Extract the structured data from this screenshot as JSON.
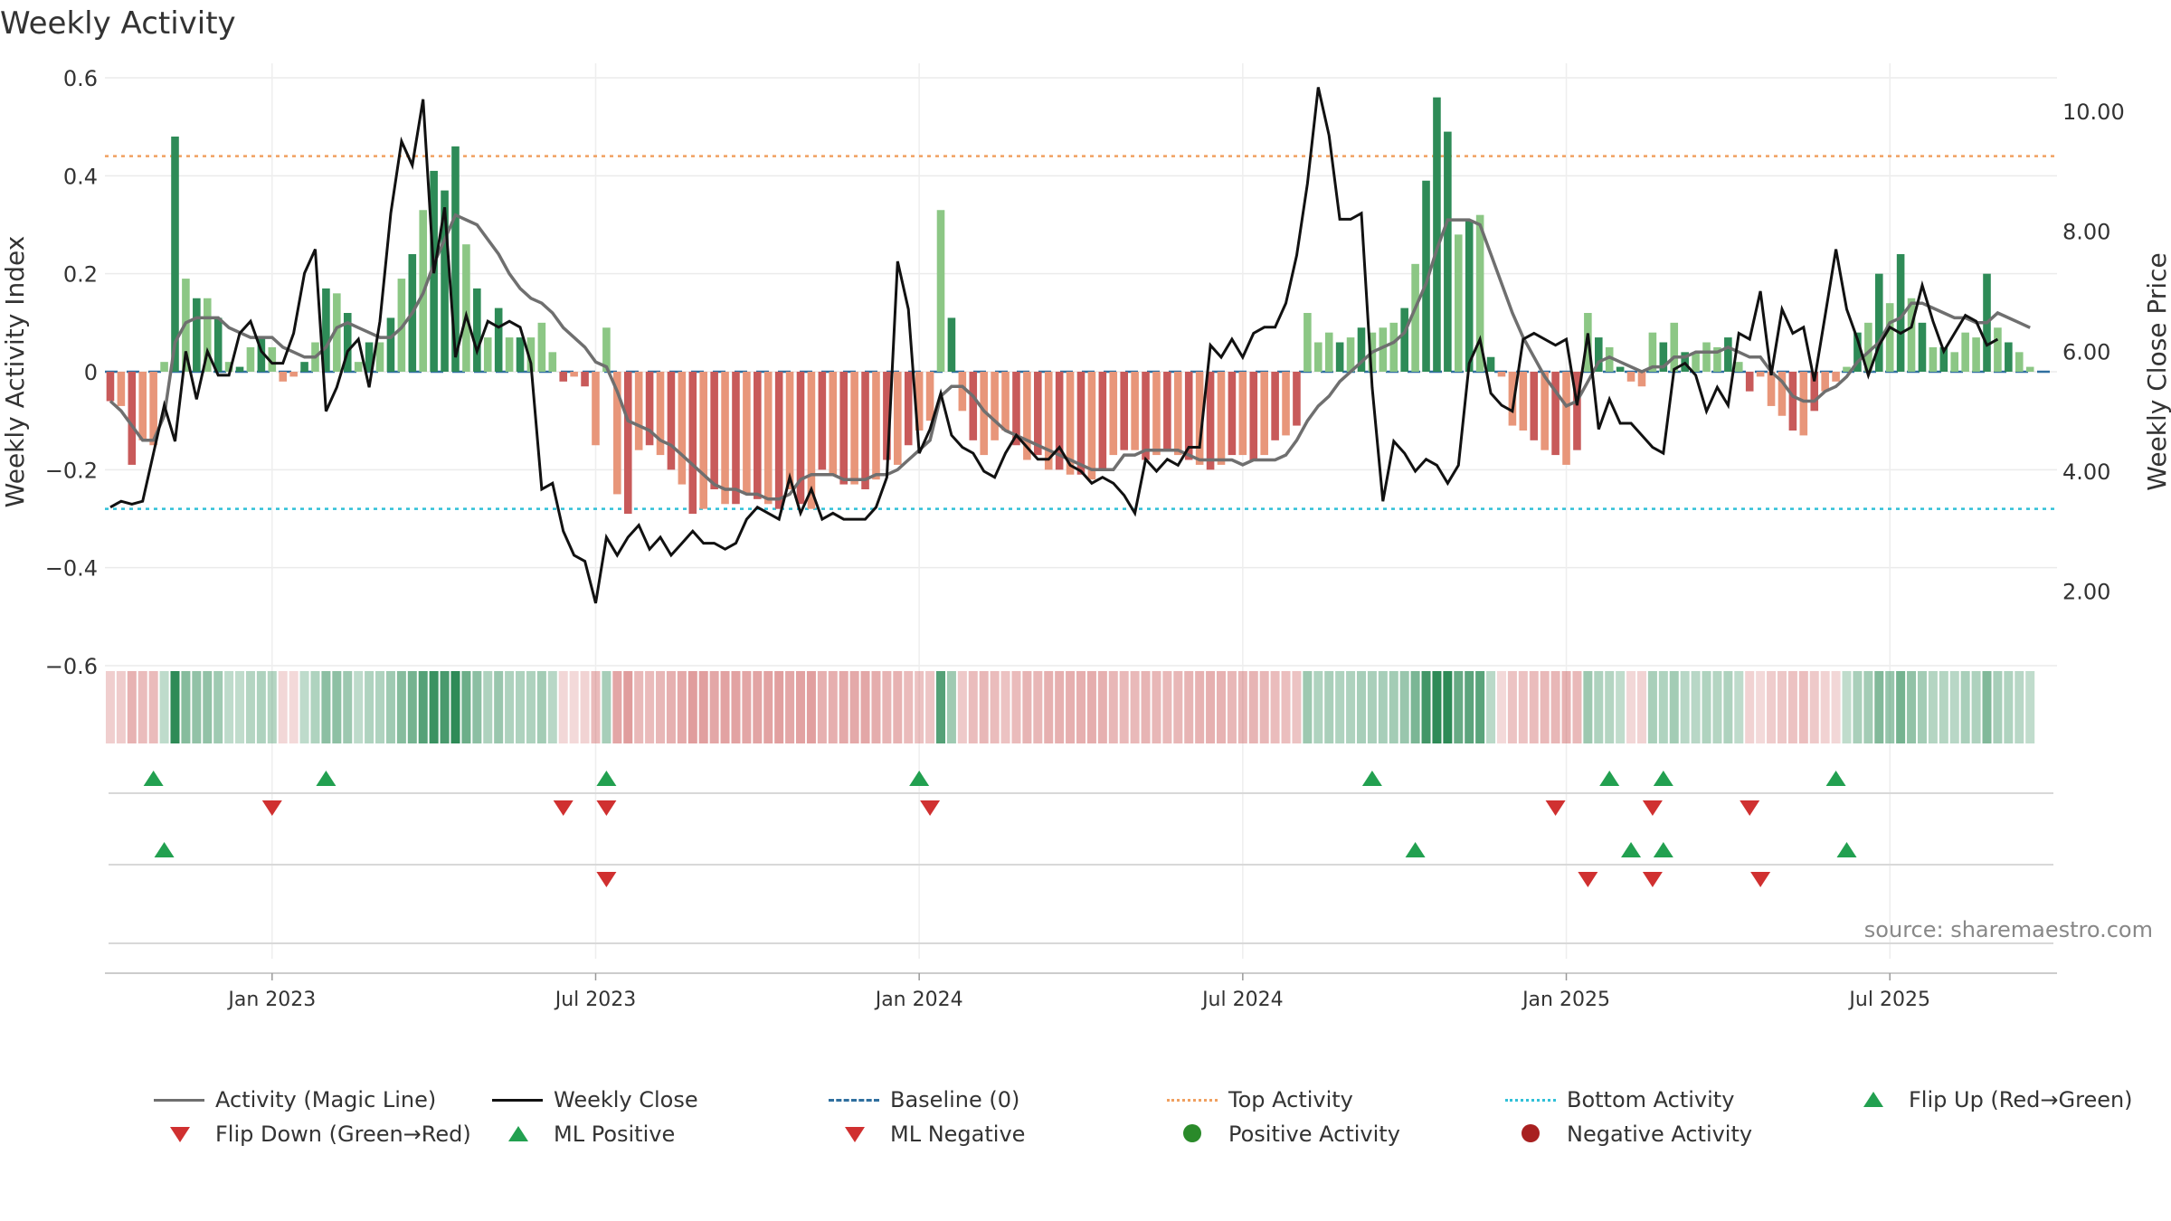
{
  "title": "Weekly Activity",
  "source": "source: sharemaestro.com",
  "legend": [
    {
      "label": "Activity (Magic Line)",
      "symbol": "line-gray"
    },
    {
      "label": "Weekly Close",
      "symbol": "line-black"
    },
    {
      "label": "Baseline (0)",
      "symbol": "dash-blue"
    },
    {
      "label": "Top Activity",
      "symbol": "dot-orange"
    },
    {
      "label": "Bottom Activity",
      "symbol": "dot-cyan"
    },
    {
      "label": "Flip Up (Red→Green)",
      "symbol": "tri-up"
    },
    {
      "label": "Flip Down (Green→Red)",
      "symbol": "tri-down"
    },
    {
      "label": "ML Positive",
      "symbol": "tri-up"
    },
    {
      "label": "ML Negative",
      "symbol": "tri-down"
    },
    {
      "label": "Positive Activity",
      "symbol": "dot-green"
    },
    {
      "label": "Negative Activity",
      "symbol": "dot-red"
    }
  ],
  "colors": {
    "pos_strong": "#2e8b57",
    "pos_light": "#8cc785",
    "neg_strong": "#c85a5a",
    "neg_light": "#e8967a",
    "magic_line": "#6f6f6f",
    "close_line": "#111111",
    "baseline": "#2f6f9f",
    "top": "#f0a060",
    "bottom": "#30c0d8",
    "flip_up": "#22a050",
    "flip_down": "#d03030"
  },
  "chart_data": {
    "type": "bar+line",
    "x_ticks": [
      "Jan 2023",
      "Jul 2023",
      "Jan 2024",
      "Jul 2024",
      "Jan 2025",
      "Jul 2025"
    ],
    "x_tick_week": [
      15,
      45,
      75,
      105,
      135,
      165
    ],
    "ylabel_left": "Weekly Activity Index",
    "ylabel_right": "Weekly Close Price",
    "ylim_left": [
      -0.6,
      0.6
    ],
    "yticks_left": [
      {
        "v": 0.6,
        "label": "0.6"
      },
      {
        "v": 0.4,
        "label": "0.4"
      },
      {
        "v": 0.2,
        "label": "0.2"
      },
      {
        "v": 0,
        "label": "0"
      },
      {
        "v": -0.2,
        "label": "−0.2"
      },
      {
        "v": -0.4,
        "label": "−0.4"
      },
      {
        "v": -0.6,
        "label": "−0.6"
      }
    ],
    "ylim_right": [
      1.0,
      10.8
    ],
    "yticks_right": [
      {
        "v": 10,
        "label": "10.00"
      },
      {
        "v": 8,
        "label": "8.00"
      },
      {
        "v": 6,
        "label": "6.00"
      },
      {
        "v": 4,
        "label": "4.00"
      },
      {
        "v": 2,
        "label": "2.00"
      }
    ],
    "top_activity": 0.44,
    "bottom_activity": -0.28,
    "n_weeks": 181,
    "activity": [
      -0.06,
      -0.07,
      -0.19,
      -0.14,
      -0.15,
      0.02,
      0.48,
      0.19,
      0.15,
      0.15,
      0.11,
      0.02,
      0.01,
      0.05,
      0.07,
      0.05,
      -0.02,
      -0.01,
      0.02,
      0.06,
      0.17,
      0.16,
      0.12,
      0.02,
      0.06,
      0.06,
      0.11,
      0.19,
      0.24,
      0.33,
      0.41,
      0.37,
      0.46,
      0.26,
      0.17,
      0.07,
      0.13,
      0.07,
      0.07,
      0.07,
      0.1,
      0.04,
      -0.02,
      -0.01,
      -0.03,
      -0.15,
      0.09,
      -0.25,
      -0.29,
      -0.16,
      -0.15,
      -0.17,
      -0.2,
      -0.23,
      -0.29,
      -0.28,
      -0.24,
      -0.27,
      -0.27,
      -0.25,
      -0.26,
      -0.27,
      -0.28,
      -0.24,
      -0.27,
      -0.28,
      -0.2,
      -0.21,
      -0.23,
      -0.23,
      -0.24,
      -0.22,
      -0.18,
      -0.19,
      -0.15,
      -0.12,
      -0.1,
      0.33,
      0.11,
      -0.08,
      -0.14,
      -0.17,
      -0.14,
      -0.12,
      -0.15,
      -0.18,
      -0.17,
      -0.2,
      -0.2,
      -0.21,
      -0.21,
      -0.22,
      -0.2,
      -0.17,
      -0.16,
      -0.16,
      -0.18,
      -0.17,
      -0.16,
      -0.17,
      -0.18,
      -0.19,
      -0.2,
      -0.19,
      -0.17,
      -0.17,
      -0.18,
      -0.17,
      -0.14,
      -0.13,
      -0.11,
      0.12,
      0.06,
      0.08,
      0.06,
      0.07,
      0.09,
      0.08,
      0.09,
      0.1,
      0.13,
      0.22,
      0.39,
      0.56,
      0.49,
      0.28,
      0.31,
      0.32,
      0.03,
      -0.01,
      -0.11,
      -0.12,
      -0.14,
      -0.16,
      -0.17,
      -0.19,
      -0.16,
      0.12,
      0.07,
      0.05,
      0.01,
      -0.02,
      -0.03,
      0.08,
      0.06,
      0.1,
      0.04,
      0.04,
      0.06,
      0.05,
      0.07,
      0.02,
      -0.04,
      -0.01,
      -0.07,
      -0.09,
      -0.12,
      -0.13,
      -0.08,
      -0.04,
      -0.02,
      0.01,
      0.08,
      0.1,
      0.2,
      0.14,
      0.24,
      0.15,
      0.1,
      0.05,
      0.05,
      0.04,
      0.08,
      0.07,
      0.2,
      0.09,
      0.06,
      0.04,
      0.01
    ],
    "magic_line": [
      -0.06,
      -0.08,
      -0.11,
      -0.14,
      -0.14,
      -0.09,
      0.06,
      0.1,
      0.11,
      0.11,
      0.11,
      0.09,
      0.08,
      0.07,
      0.07,
      0.07,
      0.05,
      0.04,
      0.03,
      0.03,
      0.05,
      0.09,
      0.1,
      0.09,
      0.08,
      0.07,
      0.07,
      0.09,
      0.12,
      0.16,
      0.22,
      0.27,
      0.32,
      0.31,
      0.3,
      0.27,
      0.24,
      0.2,
      0.17,
      0.15,
      0.14,
      0.12,
      0.09,
      0.07,
      0.05,
      0.02,
      0.01,
      -0.04,
      -0.1,
      -0.11,
      -0.12,
      -0.14,
      -0.15,
      -0.17,
      -0.19,
      -0.21,
      -0.23,
      -0.24,
      -0.24,
      -0.25,
      -0.25,
      -0.26,
      -0.26,
      -0.25,
      -0.22,
      -0.21,
      -0.21,
      -0.21,
      -0.22,
      -0.22,
      -0.22,
      -0.21,
      -0.21,
      -0.2,
      -0.18,
      -0.16,
      -0.14,
      -0.05,
      -0.03,
      -0.03,
      -0.05,
      -0.08,
      -0.1,
      -0.12,
      -0.13,
      -0.14,
      -0.15,
      -0.16,
      -0.17,
      -0.18,
      -0.19,
      -0.2,
      -0.2,
      -0.2,
      -0.17,
      -0.17,
      -0.16,
      -0.16,
      -0.16,
      -0.16,
      -0.17,
      -0.18,
      -0.18,
      -0.18,
      -0.18,
      -0.19,
      -0.18,
      -0.18,
      -0.18,
      -0.17,
      -0.14,
      -0.1,
      -0.07,
      -0.05,
      -0.02,
      0.0,
      0.02,
      0.04,
      0.05,
      0.06,
      0.08,
      0.13,
      0.18,
      0.25,
      0.31,
      0.31,
      0.31,
      0.3,
      0.24,
      0.18,
      0.12,
      0.07,
      0.03,
      -0.01,
      -0.04,
      -0.07,
      -0.06,
      -0.02,
      0.02,
      0.03,
      0.02,
      0.01,
      -0.0,
      0.01,
      0.01,
      0.03,
      0.03,
      0.04,
      0.04,
      0.04,
      0.05,
      0.04,
      0.03,
      0.03,
      0.0,
      -0.02,
      -0.05,
      -0.06,
      -0.06,
      -0.04,
      -0.03,
      -0.01,
      0.02,
      0.04,
      0.06,
      0.1,
      0.11,
      0.14,
      0.14,
      0.13,
      0.12,
      0.11,
      0.11,
      0.1,
      0.1,
      0.12,
      0.11,
      0.1,
      0.09
    ],
    "weekly_close": [
      3.4,
      3.5,
      3.45,
      3.5,
      4.3,
      5.1,
      4.5,
      6.0,
      5.2,
      6.0,
      5.6,
      5.6,
      6.3,
      6.5,
      6.0,
      5.8,
      5.8,
      6.3,
      7.3,
      7.7,
      5.0,
      5.4,
      6.0,
      6.2,
      5.4,
      6.5,
      8.3,
      9.5,
      9.1,
      10.2,
      7.3,
      8.4,
      5.9,
      6.6,
      6.0,
      6.5,
      6.4,
      6.5,
      6.4,
      5.8,
      3.7,
      3.8,
      3.0,
      2.6,
      2.5,
      1.8,
      2.9,
      2.6,
      2.9,
      3.1,
      2.7,
      2.9,
      2.6,
      2.8,
      3.0,
      2.8,
      2.8,
      2.7,
      2.8,
      3.2,
      3.4,
      3.3,
      3.2,
      3.9,
      3.3,
      3.7,
      3.2,
      3.3,
      3.2,
      3.2,
      3.2,
      3.4,
      3.9,
      7.5,
      6.7,
      4.3,
      4.7,
      5.3,
      4.6,
      4.4,
      4.3,
      4.0,
      3.9,
      4.3,
      4.6,
      4.4,
      4.2,
      4.2,
      4.4,
      4.1,
      4.0,
      3.8,
      3.9,
      3.8,
      3.6,
      3.3,
      4.2,
      4.0,
      4.2,
      4.1,
      4.4,
      4.4,
      6.1,
      5.9,
      6.2,
      5.9,
      6.3,
      6.4,
      6.4,
      6.8,
      7.6,
      8.8,
      10.4,
      9.6,
      8.2,
      8.2,
      8.3,
      5.4,
      3.5,
      4.5,
      4.3,
      4.0,
      4.2,
      4.1,
      3.8,
      4.1,
      5.8,
      6.2,
      5.3,
      5.1,
      5.0,
      6.2,
      6.3,
      6.2,
      6.1,
      6.2,
      5.1,
      6.3,
      4.7,
      5.2,
      4.8,
      4.8,
      4.6,
      4.4,
      4.3,
      5.7,
      5.8,
      5.6,
      5.0,
      5.4,
      5.1,
      6.3,
      6.2,
      7.0,
      5.6,
      6.7,
      6.3,
      6.4,
      5.5,
      6.6,
      7.7,
      6.7,
      6.2,
      5.6,
      6.1,
      6.4,
      6.3,
      6.4,
      7.1,
      6.5,
      6.0,
      6.3,
      6.6,
      6.5,
      6.1,
      6.2
    ],
    "flip_up_weeks": [
      4,
      20,
      46,
      75,
      117,
      139,
      144,
      160
    ],
    "flip_down_weeks": [
      15,
      42,
      46,
      76,
      134,
      143,
      152
    ],
    "ml_positive_weeks": [
      5,
      121,
      141,
      144,
      161
    ],
    "ml_negative_weeks": [
      46,
      137,
      143,
      153
    ],
    "heat_strip": "activity-colored"
  }
}
